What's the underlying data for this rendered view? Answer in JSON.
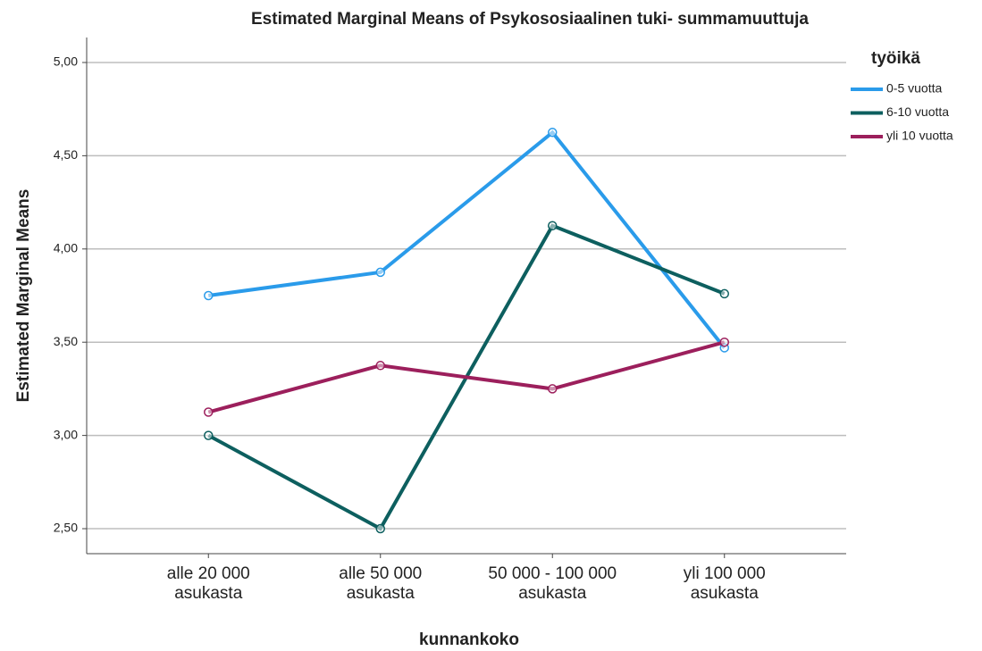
{
  "chart_data": {
    "type": "line",
    "title": "Estimated Marginal Means of Psykososiaalinen tuki- summamuuttuja",
    "x_label": "kunnankoko",
    "y_label": "Estimated Marginal Means",
    "legend_title": "työikä",
    "legend": "right",
    "grid": true,
    "categories": [
      "alle 20 000 asukasta",
      "alle 50 000 asukasta",
      "50 000 - 100 000 asukasta",
      "yli 100 000 asukasta"
    ],
    "series": [
      {
        "name": "0-5 vuotta",
        "color": "#2a9bea",
        "values": [
          3.75,
          3.875,
          4.625,
          3.47
        ]
      },
      {
        "name": "6-10 vuotta",
        "color": "#0d5f5f",
        "values": [
          3.0,
          2.5,
          4.125,
          3.76
        ]
      },
      {
        "name": "yli 10 vuotta",
        "color": "#9c1f5c",
        "values": [
          3.125,
          3.375,
          3.25,
          3.5
        ]
      }
    ],
    "ylim": [
      2.366,
      5.134
    ],
    "yticks": [
      {
        "value": 2.5,
        "label": "2,50"
      },
      {
        "value": 3,
        "label": "3,00"
      },
      {
        "value": 3.5,
        "label": "3,50"
      },
      {
        "value": 4,
        "label": "4,00"
      },
      {
        "value": 4.5,
        "label": "4,50"
      },
      {
        "value": 5,
        "label": "5,00"
      }
    ]
  }
}
